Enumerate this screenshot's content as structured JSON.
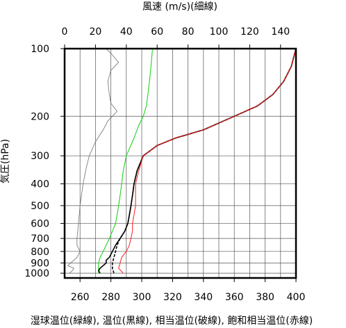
{
  "chart_data": {
    "type": "line",
    "top_axis_label": "風速 (m/s)(細線)",
    "y_axis_label": "気圧(hPa)",
    "x_axis_label": "湿球温位(緑線), 温位(黒線), 相当温位(破線), 飽和相当温位(赤線)",
    "top_ticks": [
      0,
      20,
      40,
      60,
      80,
      100,
      120,
      140
    ],
    "top_range": [
      0,
      150
    ],
    "y_ticks": [
      100,
      200,
      300,
      400,
      500,
      600,
      700,
      800,
      900,
      1000
    ],
    "y_range": [
      100,
      1050
    ],
    "y_scale": "log",
    "x_ticks": [
      260,
      280,
      300,
      320,
      340,
      360,
      380,
      400
    ],
    "x_range": [
      250,
      400
    ],
    "series": [
      {
        "key": "wind",
        "axis": "top",
        "color": "#6e6e6e",
        "points": [
          [
            3,
            1000
          ],
          [
            5,
            975
          ],
          [
            6,
            950
          ],
          [
            2,
            925
          ],
          [
            4,
            900
          ],
          [
            6,
            875
          ],
          [
            8,
            850
          ],
          [
            9,
            825
          ],
          [
            10,
            800
          ],
          [
            9,
            775
          ],
          [
            8,
            750
          ],
          [
            8,
            700
          ],
          [
            9,
            600
          ],
          [
            10,
            500
          ],
          [
            12,
            400
          ],
          [
            14,
            340
          ],
          [
            16,
            300
          ],
          [
            20,
            260
          ],
          [
            25,
            230
          ],
          [
            28,
            210
          ],
          [
            31,
            200
          ],
          [
            34,
            190
          ],
          [
            30,
            175
          ],
          [
            29,
            160
          ],
          [
            28,
            140
          ],
          [
            30,
            125
          ],
          [
            35,
            115
          ],
          [
            30,
            105
          ],
          [
            27,
            100
          ]
        ]
      },
      {
        "key": "wet_bulb_theta",
        "axis": "bottom",
        "color": "#1fd41f",
        "points": [
          [
            272,
            1000
          ],
          [
            272,
            950
          ],
          [
            272,
            900
          ],
          [
            273,
            850
          ],
          [
            275,
            800
          ],
          [
            277,
            750
          ],
          [
            279,
            700
          ],
          [
            281,
            650
          ],
          [
            283,
            600
          ],
          [
            284,
            550
          ],
          [
            285,
            500
          ],
          [
            286,
            450
          ],
          [
            287,
            400
          ],
          [
            288,
            350
          ],
          [
            290,
            300
          ],
          [
            295,
            250
          ],
          [
            298,
            220
          ],
          [
            301,
            200
          ],
          [
            303,
            180
          ],
          [
            304,
            160
          ],
          [
            305,
            140
          ],
          [
            306,
            120
          ],
          [
            307,
            100
          ]
        ]
      },
      {
        "key": "theta",
        "axis": "bottom",
        "color": "#000000",
        "points": [
          [
            273,
            1000
          ],
          [
            272,
            975
          ],
          [
            273,
            950
          ],
          [
            275,
            925
          ],
          [
            277,
            900
          ],
          [
            277,
            875
          ],
          [
            279,
            850
          ],
          [
            281,
            800
          ],
          [
            283,
            750
          ],
          [
            286,
            700
          ],
          [
            289,
            650
          ],
          [
            291,
            600
          ],
          [
            292,
            550
          ],
          [
            293,
            500
          ],
          [
            294,
            450
          ],
          [
            295,
            400
          ],
          [
            297,
            350
          ],
          [
            301,
            300
          ],
          [
            310,
            270
          ],
          [
            322,
            250
          ],
          [
            340,
            230
          ],
          [
            360,
            200
          ],
          [
            375,
            180
          ],
          [
            385,
            160
          ],
          [
            392,
            140
          ],
          [
            397,
            120
          ],
          [
            400,
            100
          ]
        ]
      },
      {
        "key": "theta_e",
        "axis": "bottom",
        "color": "#000000",
        "dashed": true,
        "points": [
          [
            282,
            1000
          ],
          [
            281,
            950
          ],
          [
            281,
            900
          ],
          [
            282,
            850
          ],
          [
            283,
            800
          ],
          [
            284,
            750
          ],
          [
            286,
            700
          ],
          [
            289,
            650
          ],
          [
            291,
            600
          ],
          [
            292,
            550
          ],
          [
            293,
            500
          ],
          [
            294,
            450
          ],
          [
            295,
            400
          ],
          [
            297,
            350
          ],
          [
            301,
            300
          ],
          [
            310,
            270
          ],
          [
            322,
            250
          ],
          [
            340,
            230
          ],
          [
            360,
            200
          ],
          [
            375,
            180
          ],
          [
            385,
            160
          ],
          [
            392,
            140
          ],
          [
            397,
            120
          ],
          [
            400,
            100
          ]
        ]
      },
      {
        "key": "theta_es",
        "axis": "bottom",
        "color": "#ff1a1a",
        "points": [
          [
            288,
            1000
          ],
          [
            285,
            950
          ],
          [
            286,
            900
          ],
          [
            287,
            850
          ],
          [
            290,
            800
          ],
          [
            292,
            750
          ],
          [
            293,
            700
          ],
          [
            294,
            650
          ],
          [
            294,
            600
          ],
          [
            295,
            550
          ],
          [
            296,
            500
          ],
          [
            296,
            450
          ],
          [
            296,
            400
          ],
          [
            298,
            350
          ],
          [
            301,
            300
          ],
          [
            310,
            270
          ],
          [
            322,
            250
          ],
          [
            340,
            230
          ],
          [
            360,
            200
          ],
          [
            375,
            180
          ],
          [
            385,
            160
          ],
          [
            392,
            140
          ],
          [
            397,
            120
          ],
          [
            400,
            100
          ]
        ]
      }
    ],
    "grid": true
  }
}
